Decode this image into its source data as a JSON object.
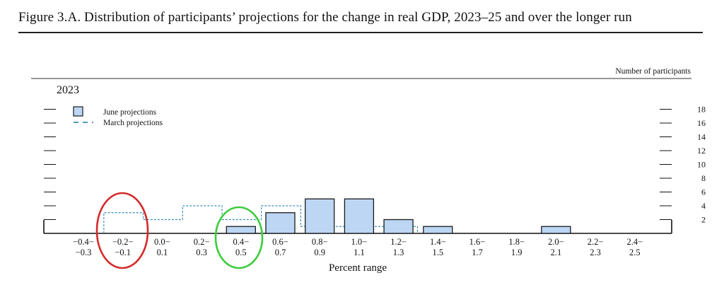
{
  "figure": {
    "title": "Figure 3.A. Distribution of participants’ projections for the change in real GDP, 2023–25 and over the longer run"
  },
  "colors": {
    "june_fill": "#bcd6f4",
    "june_stroke": "#1a1a1a",
    "march_line": "#3a8fb0",
    "circle_red": "#d42a2a",
    "circle_green": "#3ccc3c"
  },
  "chart_data": {
    "type": "bar",
    "panel_title": "2023",
    "ylabel": "Number of participants",
    "xlabel": "Percent range",
    "ylim": [
      0,
      18
    ],
    "yticks": [
      2,
      4,
      6,
      8,
      10,
      12,
      14,
      16,
      18
    ],
    "categories": [
      {
        "top": "−0.4−",
        "bottom": "−0.3"
      },
      {
        "top": "−0.2−",
        "bottom": "−0.1"
      },
      {
        "top": "0.0−",
        "bottom": "0.1"
      },
      {
        "top": "0.2−",
        "bottom": "0.3"
      },
      {
        "top": "0.4−",
        "bottom": "0.5"
      },
      {
        "top": "0.6−",
        "bottom": "0.7"
      },
      {
        "top": "0.8−",
        "bottom": "0.9"
      },
      {
        "top": "1.0−",
        "bottom": "1.1"
      },
      {
        "top": "1.2−",
        "bottom": "1.3"
      },
      {
        "top": "1.4−",
        "bottom": "1.5"
      },
      {
        "top": "1.6−",
        "bottom": "1.7"
      },
      {
        "top": "1.8−",
        "bottom": "1.9"
      },
      {
        "top": "2.0−",
        "bottom": "2.1"
      },
      {
        "top": "2.2−",
        "bottom": "2.3"
      },
      {
        "top": "2.4−",
        "bottom": "2.5"
      }
    ],
    "series": [
      {
        "name": "June projections",
        "style": "bar",
        "values": [
          0,
          0,
          0,
          0,
          1,
          3,
          5,
          5,
          2,
          1,
          0,
          0,
          1,
          0,
          0
        ]
      },
      {
        "name": "March projections",
        "style": "dashed-step",
        "values": [
          0,
          3,
          2,
          4,
          2,
          4,
          1,
          1,
          1,
          0,
          0,
          0,
          0,
          0,
          0
        ]
      }
    ],
    "legend_position": "top-left",
    "annotations": [
      {
        "shape": "ellipse",
        "color": "red",
        "category_index": 1
      },
      {
        "shape": "ellipse",
        "color": "green",
        "category_index": 4
      }
    ]
  }
}
